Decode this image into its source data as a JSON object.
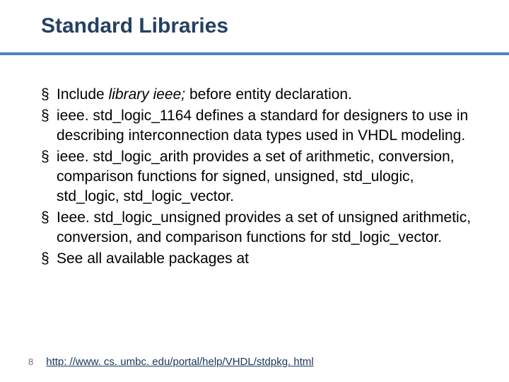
{
  "title": "Standard Libraries",
  "separator_color": "#4f81bd",
  "title_color": "#254061",
  "bullets": [
    {
      "prefix": "Include ",
      "italic": "library ieee;",
      "suffix": " before entity declaration."
    },
    {
      "text": "ieee. std_logic_1164 defines a standard for designers to use in describing interconnection data types used in VHDL modeling."
    },
    {
      "text": "ieee. std_logic_arith provides a set of arithmetic, conversion, comparison functions for signed, unsigned, std_ulogic, std_logic, std_logic_vector."
    },
    {
      "text": "Ieee. std_logic_unsigned provides a set of unsigned arithmetic, conversion, and comparison functions for std_logic_vector."
    },
    {
      "text": "See all available packages at"
    }
  ],
  "page_number": "8",
  "link_text": "http: //www. cs. umbc. edu/portal/help/VHDL/stdpkg. html",
  "link_color": "#17365d"
}
